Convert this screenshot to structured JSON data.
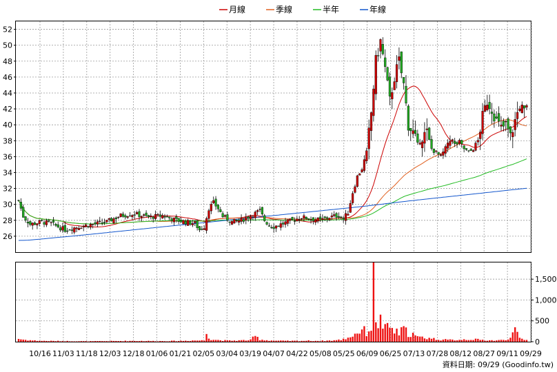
{
  "chart_data": {
    "type": "candlestick",
    "legend": [
      {
        "label": "月線",
        "color": "#cc0000"
      },
      {
        "label": "季線",
        "color": "#e06020"
      },
      {
        "label": "半年",
        "color": "#22bb22"
      },
      {
        "label": "年線",
        "color": "#1155cc"
      }
    ],
    "colors": {
      "up": "#cc0000",
      "down": "#22aa22",
      "volume": "#ee1111",
      "grid": "#999999"
    },
    "price_axis": {
      "min": 24,
      "max": 53,
      "ticks": [
        26,
        28,
        30,
        32,
        34,
        36,
        38,
        40,
        42,
        44,
        46,
        48,
        50,
        52
      ]
    },
    "volume_axis": {
      "min": 0,
      "max": 1900,
      "ticks": [
        0,
        500,
        1000,
        1500
      ],
      "tick_labels": [
        "0",
        "500",
        "1,000",
        "1,500"
      ]
    },
    "x_labels": [
      "10/16",
      "11/03",
      "11/18",
      "12/03",
      "12/18",
      "01/06",
      "01/21",
      "02/05",
      "03/04",
      "03/19",
      "04/07",
      "04/22",
      "05/08",
      "05/25",
      "06/09",
      "06/25",
      "07/13",
      "07/28",
      "08/12",
      "08/27",
      "09/11",
      "09/29"
    ],
    "footer": "資料日期: 09/29  (Goodinfo.tw)",
    "anchors": {
      "close": [
        [
          0,
          30.5
        ],
        [
          2,
          28.5
        ],
        [
          5,
          27.5
        ],
        [
          10,
          27.8
        ],
        [
          14,
          27.6
        ],
        [
          20,
          26.8
        ],
        [
          26,
          27.2
        ],
        [
          32,
          27.5
        ],
        [
          38,
          27.8
        ],
        [
          44,
          28.6
        ],
        [
          50,
          28.8
        ],
        [
          56,
          28.4
        ],
        [
          62,
          28.6
        ],
        [
          68,
          28.0
        ],
        [
          72,
          27.8
        ],
        [
          76,
          27.6
        ],
        [
          78,
          26.8
        ],
        [
          80,
          27.2
        ],
        [
          82,
          29.5
        ],
        [
          84,
          30.2
        ],
        [
          86,
          29.5
        ],
        [
          88,
          28.5
        ],
        [
          92,
          27.8
        ],
        [
          96,
          28.0
        ],
        [
          100,
          28.6
        ],
        [
          104,
          29.2
        ],
        [
          106,
          28.0
        ],
        [
          108,
          27.4
        ],
        [
          110,
          27.2
        ],
        [
          114,
          27.6
        ],
        [
          118,
          28.0
        ],
        [
          122,
          28.4
        ],
        [
          126,
          28.2
        ],
        [
          130,
          28.0
        ],
        [
          134,
          28.4
        ],
        [
          138,
          28.6
        ],
        [
          140,
          28.2
        ],
        [
          142,
          29.0
        ],
        [
          144,
          31.5
        ],
        [
          146,
          33.5
        ],
        [
          148,
          34.5
        ],
        [
          150,
          36.5
        ],
        [
          152,
          41.5
        ],
        [
          154,
          48.0
        ],
        [
          156,
          50.5
        ],
        [
          158,
          47.0
        ],
        [
          160,
          43.0
        ],
        [
          162,
          46.0
        ],
        [
          164,
          48.0
        ],
        [
          166,
          45.0
        ],
        [
          168,
          40.0
        ],
        [
          170,
          39.0
        ],
        [
          172,
          37.5
        ],
        [
          174,
          38.5
        ],
        [
          176,
          39.0
        ],
        [
          178,
          37.0
        ],
        [
          180,
          36.5
        ],
        [
          182,
          36.0
        ],
        [
          184,
          37.0
        ],
        [
          186,
          38.5
        ],
        [
          188,
          37.5
        ],
        [
          190,
          37.8
        ],
        [
          192,
          37.0
        ],
        [
          194,
          36.5
        ],
        [
          196,
          37.0
        ],
        [
          198,
          38.0
        ],
        [
          200,
          41.0
        ],
        [
          202,
          43.0
        ],
        [
          204,
          42.0
        ],
        [
          206,
          40.5
        ],
        [
          208,
          39.5
        ],
        [
          210,
          40.0
        ],
        [
          212,
          38.5
        ],
        [
          214,
          40.5
        ],
        [
          216,
          42.5
        ],
        [
          218,
          41.5
        ],
        [
          219,
          42.0
        ]
      ],
      "volume": [
        [
          0,
          70
        ],
        [
          2,
          50
        ],
        [
          4,
          40
        ],
        [
          6,
          30
        ],
        [
          10,
          20
        ],
        [
          20,
          15
        ],
        [
          30,
          10
        ],
        [
          40,
          15
        ],
        [
          50,
          20
        ],
        [
          60,
          15
        ],
        [
          70,
          20
        ],
        [
          75,
          30
        ],
        [
          80,
          30
        ],
        [
          81,
          220
        ],
        [
          82,
          130
        ],
        [
          83,
          60
        ],
        [
          86,
          40
        ],
        [
          90,
          25
        ],
        [
          95,
          30
        ],
        [
          100,
          40
        ],
        [
          102,
          130
        ],
        [
          104,
          60
        ],
        [
          106,
          40
        ],
        [
          110,
          25
        ],
        [
          115,
          20
        ],
        [
          120,
          20
        ],
        [
          125,
          25
        ],
        [
          130,
          20
        ],
        [
          135,
          30
        ],
        [
          138,
          40
        ],
        [
          140,
          60
        ],
        [
          142,
          100
        ],
        [
          144,
          150
        ],
        [
          146,
          220
        ],
        [
          148,
          300
        ],
        [
          150,
          220
        ],
        [
          152,
          350
        ],
        [
          153,
          1850
        ],
        [
          154,
          600
        ],
        [
          155,
          450
        ],
        [
          156,
          500
        ],
        [
          158,
          300
        ],
        [
          160,
          350
        ],
        [
          162,
          250
        ],
        [
          164,
          200
        ],
        [
          166,
          300
        ],
        [
          168,
          200
        ],
        [
          170,
          180
        ],
        [
          172,
          100
        ],
        [
          175,
          100
        ],
        [
          178,
          80
        ],
        [
          180,
          60
        ],
        [
          185,
          40
        ],
        [
          190,
          50
        ],
        [
          195,
          60
        ],
        [
          200,
          40
        ],
        [
          205,
          30
        ],
        [
          210,
          40
        ],
        [
          214,
          250
        ],
        [
          216,
          80
        ],
        [
          218,
          50
        ],
        [
          219,
          40
        ]
      ]
    }
  }
}
